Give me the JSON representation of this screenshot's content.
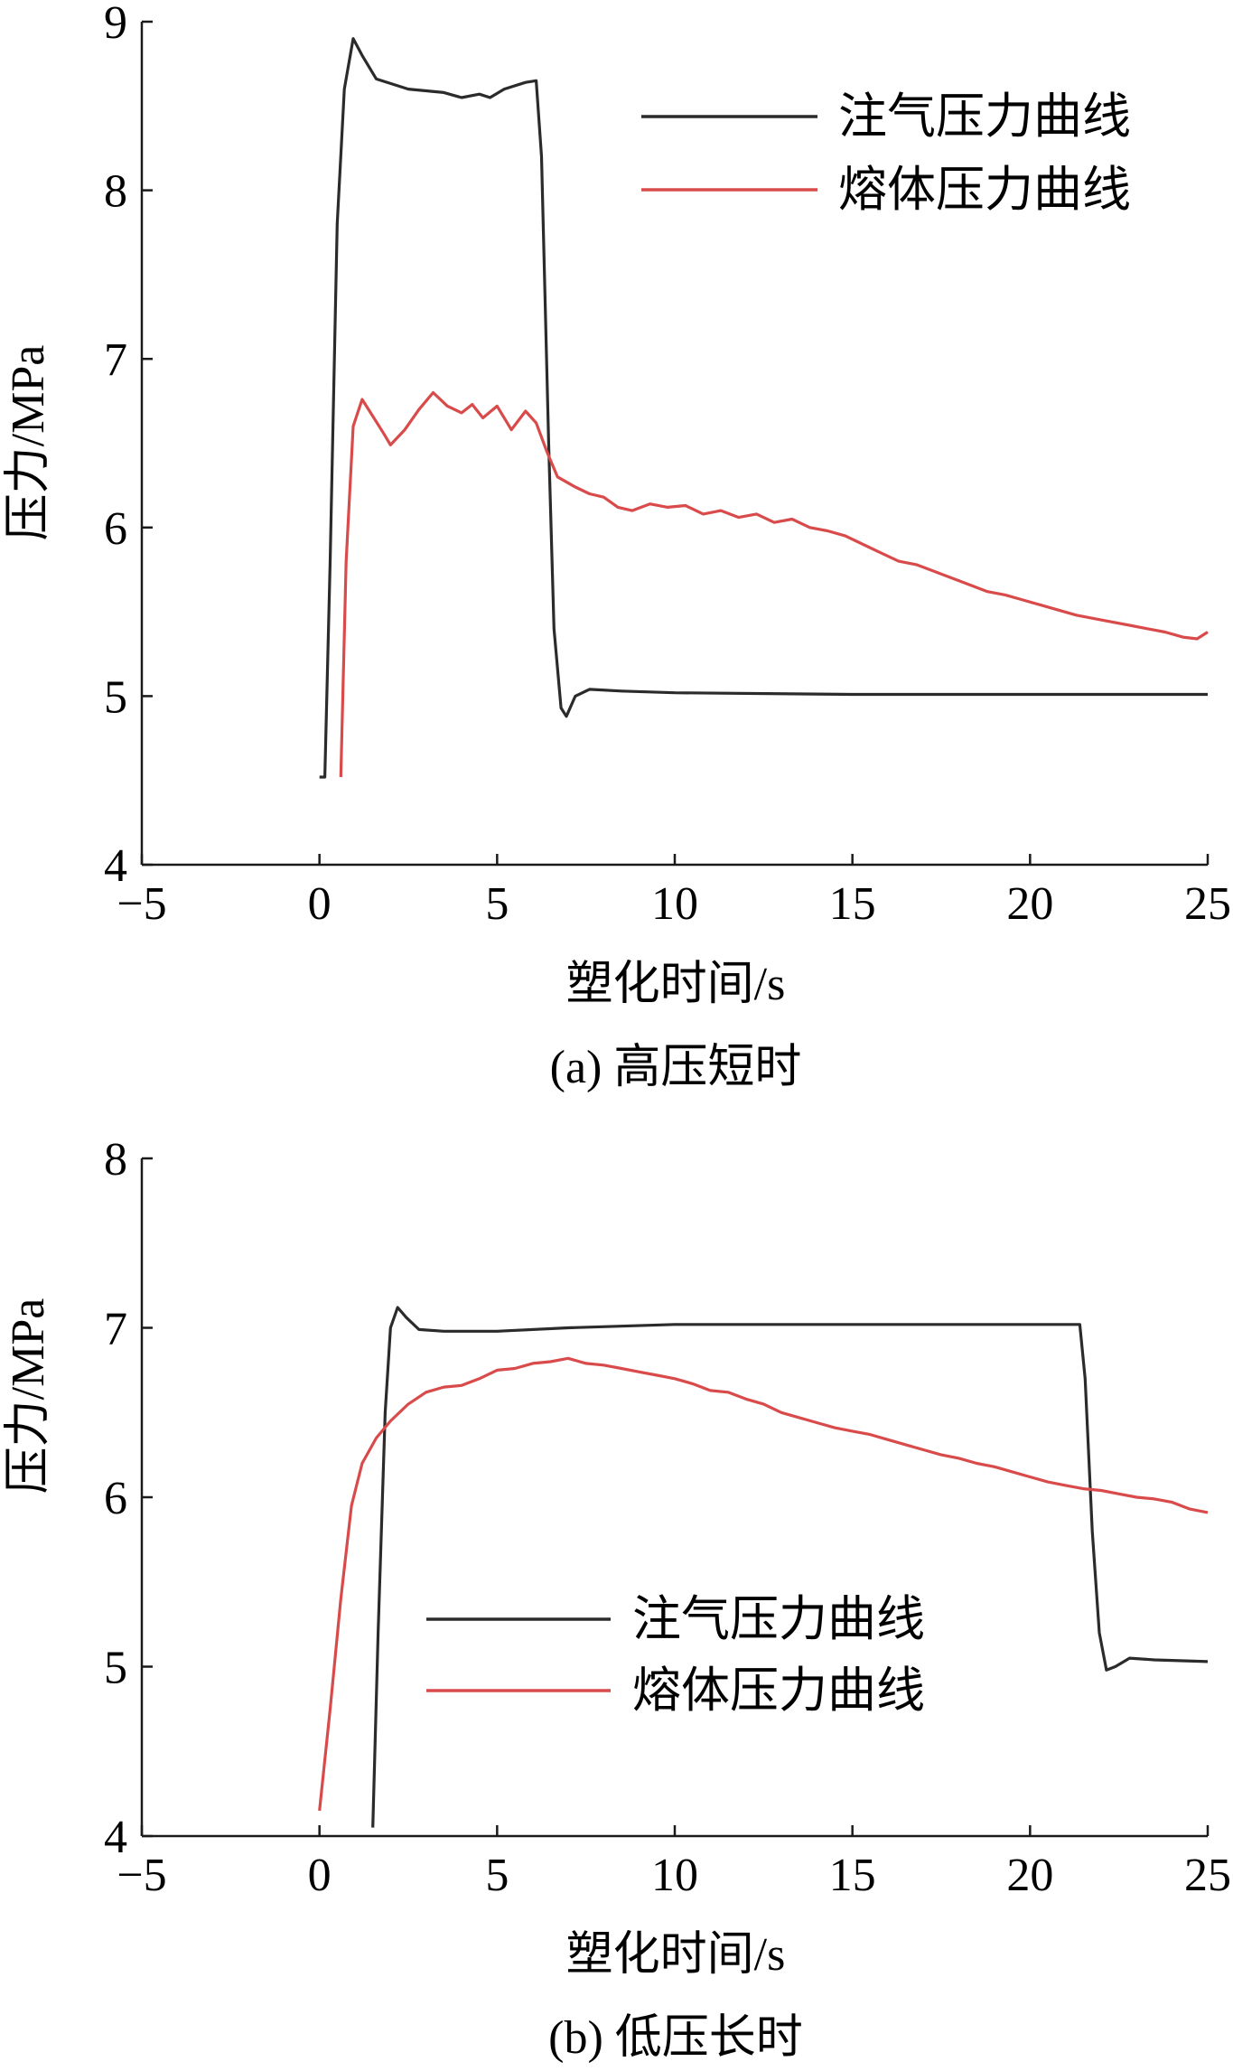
{
  "chart_data": [
    {
      "type": "line",
      "caption": "(a) 高压短时",
      "xlabel": "塑化时间/s",
      "ylabel": "压力/MPa",
      "xlim": [
        -5,
        25
      ],
      "ylim": [
        4,
        9
      ],
      "x_ticks": [
        "−5",
        "0",
        "5",
        "10",
        "15",
        "20",
        "25"
      ],
      "y_ticks": [
        "4",
        "5",
        "6",
        "7",
        "8",
        "9"
      ],
      "legend_position": "top-right",
      "series": [
        {
          "name": "注气压力曲线",
          "color": "#2b2b2b",
          "points": [
            [
              0,
              4.52
            ],
            [
              0.15,
              4.52
            ],
            [
              0.3,
              5.8
            ],
            [
              0.5,
              7.8
            ],
            [
              0.7,
              8.6
            ],
            [
              0.95,
              8.9
            ],
            [
              1.2,
              8.8
            ],
            [
              1.6,
              8.66
            ],
            [
              2.5,
              8.6
            ],
            [
              3.5,
              8.58
            ],
            [
              4.0,
              8.55
            ],
            [
              4.5,
              8.57
            ],
            [
              4.8,
              8.55
            ],
            [
              5.2,
              8.6
            ],
            [
              5.8,
              8.64
            ],
            [
              6.1,
              8.65
            ],
            [
              6.25,
              8.2
            ],
            [
              6.45,
              6.5
            ],
            [
              6.6,
              5.4
            ],
            [
              6.8,
              4.93
            ],
            [
              6.95,
              4.88
            ],
            [
              7.2,
              5.0
            ],
            [
              7.6,
              5.04
            ],
            [
              8.5,
              5.03
            ],
            [
              10,
              5.02
            ],
            [
              15,
              5.01
            ],
            [
              20,
              5.01
            ],
            [
              25,
              5.01
            ]
          ]
        },
        {
          "name": "熔体压力曲线",
          "color": "#d94b4b",
          "points": [
            [
              0.6,
              4.52
            ],
            [
              0.75,
              5.8
            ],
            [
              0.95,
              6.6
            ],
            [
              1.2,
              6.76
            ],
            [
              1.5,
              6.66
            ],
            [
              1.8,
              6.56
            ],
            [
              2.0,
              6.49
            ],
            [
              2.4,
              6.58
            ],
            [
              2.8,
              6.7
            ],
            [
              3.2,
              6.8
            ],
            [
              3.6,
              6.72
            ],
            [
              4.0,
              6.68
            ],
            [
              4.3,
              6.73
            ],
            [
              4.6,
              6.65
            ],
            [
              5.0,
              6.72
            ],
            [
              5.4,
              6.58
            ],
            [
              5.8,
              6.69
            ],
            [
              6.1,
              6.62
            ],
            [
              6.4,
              6.45
            ],
            [
              6.7,
              6.3
            ],
            [
              7.2,
              6.24
            ],
            [
              7.6,
              6.2
            ],
            [
              8.0,
              6.18
            ],
            [
              8.4,
              6.12
            ],
            [
              8.8,
              6.1
            ],
            [
              9.3,
              6.14
            ],
            [
              9.8,
              6.12
            ],
            [
              10.3,
              6.13
            ],
            [
              10.8,
              6.08
            ],
            [
              11.3,
              6.1
            ],
            [
              11.8,
              6.06
            ],
            [
              12.3,
              6.08
            ],
            [
              12.8,
              6.03
            ],
            [
              13.3,
              6.05
            ],
            [
              13.8,
              6.0
            ],
            [
              14.3,
              5.98
            ],
            [
              14.8,
              5.95
            ],
            [
              15.3,
              5.9
            ],
            [
              15.8,
              5.85
            ],
            [
              16.3,
              5.8
            ],
            [
              16.8,
              5.78
            ],
            [
              17.3,
              5.74
            ],
            [
              17.8,
              5.7
            ],
            [
              18.3,
              5.66
            ],
            [
              18.8,
              5.62
            ],
            [
              19.3,
              5.6
            ],
            [
              19.8,
              5.57
            ],
            [
              20.3,
              5.54
            ],
            [
              20.8,
              5.51
            ],
            [
              21.3,
              5.48
            ],
            [
              21.8,
              5.46
            ],
            [
              22.3,
              5.44
            ],
            [
              22.8,
              5.42
            ],
            [
              23.3,
              5.4
            ],
            [
              23.8,
              5.38
            ],
            [
              24.3,
              5.35
            ],
            [
              24.7,
              5.34
            ],
            [
              25,
              5.38
            ]
          ]
        }
      ]
    },
    {
      "type": "line",
      "caption": "(b) 低压长时",
      "xlabel": "塑化时间/s",
      "ylabel": "压力/MPa",
      "xlim": [
        -5,
        25
      ],
      "ylim": [
        4,
        8
      ],
      "x_ticks": [
        "−5",
        "0",
        "5",
        "10",
        "15",
        "20",
        "25"
      ],
      "y_ticks": [
        "4",
        "5",
        "6",
        "7",
        "8"
      ],
      "legend_position": "lower-center",
      "series": [
        {
          "name": "注气压力曲线",
          "color": "#2b2b2b",
          "points": [
            [
              1.5,
              4.05
            ],
            [
              1.65,
              5.2
            ],
            [
              1.85,
              6.5
            ],
            [
              2.0,
              7.0
            ],
            [
              2.2,
              7.12
            ],
            [
              2.45,
              7.06
            ],
            [
              2.8,
              6.99
            ],
            [
              3.5,
              6.98
            ],
            [
              5,
              6.98
            ],
            [
              7,
              7.0
            ],
            [
              10,
              7.02
            ],
            [
              15,
              7.02
            ],
            [
              20,
              7.02
            ],
            [
              21.4,
              7.02
            ],
            [
              21.55,
              6.7
            ],
            [
              21.75,
              5.8
            ],
            [
              21.95,
              5.2
            ],
            [
              22.15,
              4.98
            ],
            [
              22.4,
              5.0
            ],
            [
              22.8,
              5.05
            ],
            [
              23.5,
              5.04
            ],
            [
              25,
              5.03
            ]
          ]
        },
        {
          "name": "熔体压力曲线",
          "color": "#d94b4b",
          "points": [
            [
              0,
              4.15
            ],
            [
              0.3,
              4.75
            ],
            [
              0.6,
              5.4
            ],
            [
              0.9,
              5.95
            ],
            [
              1.2,
              6.2
            ],
            [
              1.6,
              6.35
            ],
            [
              2.0,
              6.45
            ],
            [
              2.5,
              6.55
            ],
            [
              3.0,
              6.62
            ],
            [
              3.5,
              6.65
            ],
            [
              4.0,
              6.66
            ],
            [
              4.5,
              6.7
            ],
            [
              5.0,
              6.75
            ],
            [
              5.5,
              6.76
            ],
            [
              6.0,
              6.79
            ],
            [
              6.5,
              6.8
            ],
            [
              7.0,
              6.82
            ],
            [
              7.5,
              6.79
            ],
            [
              8.0,
              6.78
            ],
            [
              8.5,
              6.76
            ],
            [
              9.0,
              6.74
            ],
            [
              9.5,
              6.72
            ],
            [
              10.0,
              6.7
            ],
            [
              10.5,
              6.67
            ],
            [
              11.0,
              6.63
            ],
            [
              11.5,
              6.62
            ],
            [
              12.0,
              6.58
            ],
            [
              12.5,
              6.55
            ],
            [
              13.0,
              6.5
            ],
            [
              13.5,
              6.47
            ],
            [
              14.0,
              6.44
            ],
            [
              14.5,
              6.41
            ],
            [
              15.0,
              6.39
            ],
            [
              15.5,
              6.37
            ],
            [
              16.0,
              6.34
            ],
            [
              16.5,
              6.31
            ],
            [
              17.0,
              6.28
            ],
            [
              17.5,
              6.25
            ],
            [
              18.0,
              6.23
            ],
            [
              18.5,
              6.2
            ],
            [
              19.0,
              6.18
            ],
            [
              19.5,
              6.15
            ],
            [
              20.0,
              6.12
            ],
            [
              20.5,
              6.09
            ],
            [
              21.0,
              6.07
            ],
            [
              21.5,
              6.05
            ],
            [
              22.0,
              6.04
            ],
            [
              22.5,
              6.02
            ],
            [
              23.0,
              6.0
            ],
            [
              23.5,
              5.99
            ],
            [
              24.0,
              5.97
            ],
            [
              24.5,
              5.93
            ],
            [
              25,
              5.91
            ]
          ]
        }
      ]
    }
  ]
}
